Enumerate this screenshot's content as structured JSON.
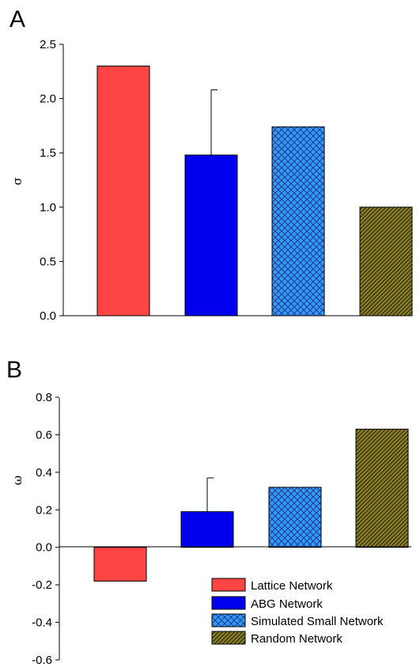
{
  "chart_data": [
    {
      "type": "bar",
      "panel_label": "A",
      "ylabel": "σ",
      "ylim": [
        0.0,
        2.5
      ],
      "yticks": [
        "0.0",
        "0.5",
        "1.0",
        "1.5",
        "2.0",
        "2.5"
      ],
      "ytick_values": [
        0.0,
        0.5,
        1.0,
        1.5,
        2.0,
        2.5
      ],
      "categories": [
        "Lattice Network",
        "ABG Network",
        "Simulated Small Network",
        "Random Network"
      ],
      "values": [
        2.3,
        1.48,
        1.74,
        1.0
      ],
      "error_plus": [
        null,
        0.6,
        null,
        null
      ],
      "grid": false
    },
    {
      "type": "bar",
      "panel_label": "B",
      "ylabel": "ω",
      "ylim": [
        -0.6,
        0.8
      ],
      "yticks": [
        "0.8",
        "0.6",
        "0.4",
        "0.2",
        "0.0",
        "-0.2",
        "-0.4",
        "-0.6"
      ],
      "ytick_values": [
        0.8,
        0.6,
        0.4,
        0.2,
        0.0,
        -0.2,
        -0.4,
        -0.6
      ],
      "categories": [
        "Lattice Network",
        "ABG Network",
        "Simulated Small Network",
        "Random Network"
      ],
      "values": [
        -0.18,
        0.19,
        0.32,
        0.63
      ],
      "error_plus": [
        null,
        0.18,
        null,
        null
      ],
      "grid": false,
      "legend": {
        "placement": "bottom-right",
        "entries": [
          "Lattice Network",
          "ABG Network",
          "Simulated Small Network",
          "Random Network"
        ]
      }
    }
  ],
  "series_styles": [
    {
      "fill": "#ff4444",
      "pattern": "solid"
    },
    {
      "fill": "#0000ee",
      "pattern": "solid"
    },
    {
      "fill": "#3399ff",
      "pattern": "crosshatch"
    },
    {
      "fill": "#8c7f22",
      "pattern": "diagonal"
    }
  ]
}
